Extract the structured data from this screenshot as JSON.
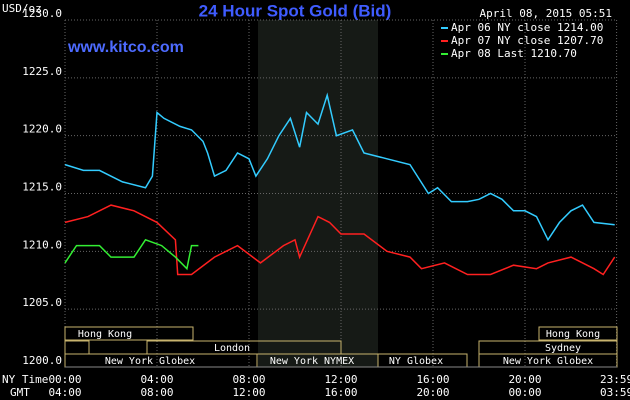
{
  "chart_data": {
    "type": "line",
    "title": "24 Hour Spot Gold (Bid)",
    "y_label": "USD/oz",
    "timestamp": "April 08, 2015 05:51",
    "watermark": "www.kitco.com",
    "x_label": "NY Time",
    "x2_label": "GMT",
    "xlim": [
      0,
      24
    ],
    "ylim": [
      1200,
      1230
    ],
    "grid": true,
    "legend": "top-right",
    "xticks": [
      {
        "value": 0,
        "label": "00:00"
      },
      {
        "value": 4,
        "label": "04:00"
      },
      {
        "value": 8,
        "label": "08:00"
      },
      {
        "value": 12,
        "label": "12:00"
      },
      {
        "value": 16,
        "label": "16:00"
      },
      {
        "value": 20,
        "label": "20:00"
      },
      {
        "value": 23.983,
        "label": "23:59"
      }
    ],
    "x2ticks": [
      {
        "value": 0,
        "label": "04:00"
      },
      {
        "value": 4,
        "label": "08:00"
      },
      {
        "value": 8,
        "label": "12:00"
      },
      {
        "value": 12,
        "label": "16:00"
      },
      {
        "value": 16,
        "label": "20:00"
      },
      {
        "value": 20,
        "label": "00:00"
      },
      {
        "value": 23.983,
        "label": "03:59"
      }
    ],
    "yticks": [
      {
        "value": 1200,
        "label": "1200.0"
      },
      {
        "value": 1205,
        "label": "1205.0"
      },
      {
        "value": 1210,
        "label": "1210.0"
      },
      {
        "value": 1215,
        "label": "1215.0"
      },
      {
        "value": 1220,
        "label": "1220.0"
      },
      {
        "value": 1225,
        "label": "1225.0"
      },
      {
        "value": 1230,
        "label": "1230.0"
      }
    ],
    "sessions": [
      "Hong Kong",
      "London",
      "New York Globex",
      "New York NYMEX",
      "NY Globex",
      "Sydney",
      "Hong Kong",
      "New York Globex"
    ],
    "series": [
      {
        "name": "Apr 06 NY close 1214.00",
        "color": "#33ccff",
        "x": [
          0,
          0.8,
          1.5,
          2.5,
          3.5,
          3.8,
          4.0,
          4.3,
          5,
          5.5,
          6,
          6.2,
          6.5,
          7,
          7.5,
          8,
          8.3,
          8.8,
          9.3,
          9.8,
          10.2,
          10.5,
          11,
          11.4,
          11.8,
          12.5,
          13,
          14,
          15,
          15.8,
          16.2,
          16.8,
          17.5,
          18,
          18.5,
          19,
          19.5,
          20,
          20.5,
          21,
          21.5,
          22,
          22.5,
          23,
          23.9
        ],
        "values": [
          1217.5,
          1217,
          1217,
          1216,
          1215.5,
          1216.5,
          1222,
          1221.5,
          1220.8,
          1220.5,
          1219.5,
          1218.5,
          1216.5,
          1217,
          1218.5,
          1218,
          1216.5,
          1218,
          1220,
          1221.5,
          1219,
          1222,
          1221,
          1223.5,
          1220,
          1220.5,
          1218.5,
          1218,
          1217.5,
          1215,
          1215.5,
          1214.3,
          1214.3,
          1214.5,
          1215,
          1214.5,
          1213.5,
          1213.5,
          1213,
          1211,
          1212.5,
          1213.5,
          1214,
          1212.5,
          1212.3
        ]
      },
      {
        "name": "Apr 07 NY close 1207.70",
        "color": "#ff2020",
        "x": [
          0,
          1,
          2,
          3,
          4,
          4.8,
          4.9,
          5.5,
          6.5,
          7.5,
          8.5,
          9.5,
          10,
          10.2,
          11,
          11.5,
          12,
          13,
          14,
          15,
          15.5,
          16.5,
          17.5,
          18.5,
          19.5,
          20.5,
          21,
          22,
          23,
          23.4,
          23.9
        ],
        "values": [
          1212.5,
          1213,
          1214,
          1213.5,
          1212.5,
          1211,
          1208,
          1208,
          1209.5,
          1210.5,
          1209,
          1210.5,
          1211,
          1209.5,
          1213,
          1212.5,
          1211.5,
          1211.5,
          1210,
          1209.5,
          1208.5,
          1209,
          1208,
          1208,
          1208.8,
          1208.5,
          1209,
          1209.5,
          1208.5,
          1208,
          1209.5
        ]
      },
      {
        "name": "Apr 08 Last 1210.70",
        "color": "#33ee33",
        "x": [
          0,
          0.5,
          1.5,
          2,
          3,
          3.5,
          4.2,
          4.8,
          5.3,
          5.5,
          5.8
        ],
        "values": [
          1209,
          1210.5,
          1210.5,
          1209.5,
          1209.5,
          1211,
          1210.5,
          1209.5,
          1208.5,
          1210.5,
          1210.5
        ]
      }
    ]
  }
}
